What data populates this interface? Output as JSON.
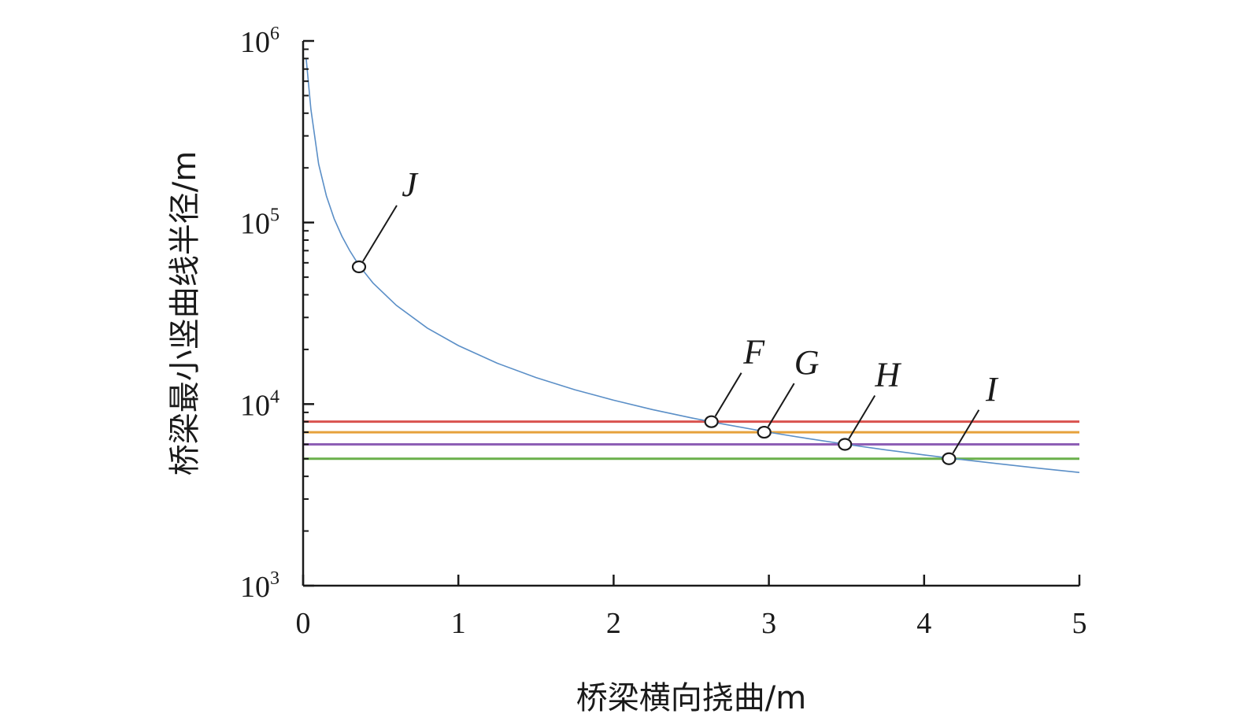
{
  "chart_data": {
    "type": "line",
    "xlabel": "桥梁横向挠曲/m",
    "ylabel": "桥梁最小竖曲线半径/m",
    "xlim": [
      0,
      5
    ],
    "ylim": [
      1000,
      1000000
    ],
    "yscale": "log",
    "x_ticks": [
      "0",
      "1",
      "2",
      "3",
      "4",
      "5"
    ],
    "y_ticks": [
      {
        "base": "10",
        "exp": "3",
        "value": 1000
      },
      {
        "base": "10",
        "exp": "4",
        "value": 10000
      },
      {
        "base": "10",
        "exp": "5",
        "value": 100000
      },
      {
        "base": "10",
        "exp": "6",
        "value": 1000000
      }
    ],
    "curve": {
      "color": "#5b8fc7",
      "points": [
        [
          0.02,
          800000
        ],
        [
          0.05,
          420000
        ],
        [
          0.1,
          210000
        ],
        [
          0.15,
          140000
        ],
        [
          0.2,
          105000
        ],
        [
          0.25,
          84000
        ],
        [
          0.3,
          70000
        ],
        [
          0.36,
          58000
        ],
        [
          0.45,
          46500
        ],
        [
          0.6,
          35000
        ],
        [
          0.8,
          26200
        ],
        [
          1.0,
          21000
        ],
        [
          1.25,
          16800
        ],
        [
          1.5,
          14000
        ],
        [
          1.75,
          12000
        ],
        [
          2.0,
          10500
        ],
        [
          2.25,
          9330
        ],
        [
          2.5,
          8400
        ],
        [
          2.65,
          7920
        ],
        [
          3.0,
          7000
        ],
        [
          3.25,
          6460
        ],
        [
          3.5,
          6000
        ],
        [
          3.75,
          5600
        ],
        [
          4.0,
          5250
        ],
        [
          4.2,
          5000
        ],
        [
          4.5,
          4670
        ],
        [
          4.75,
          4420
        ],
        [
          5.0,
          4200
        ]
      ]
    },
    "horizontal_lines": [
      {
        "y": 8000,
        "color": "#d9534f"
      },
      {
        "y": 7000,
        "color": "#e6a23c"
      },
      {
        "y": 6000,
        "color": "#8e5fb5"
      },
      {
        "y": 5000,
        "color": "#6ab04c"
      }
    ],
    "markers": [
      {
        "label": "J",
        "x": 0.36,
        "y": 57000
      },
      {
        "label": "F",
        "x": 2.63,
        "y": 8000
      },
      {
        "label": "G",
        "x": 2.97,
        "y": 7000
      },
      {
        "label": "H",
        "x": 3.49,
        "y": 6000
      },
      {
        "label": "I",
        "x": 4.16,
        "y": 5000
      }
    ]
  }
}
